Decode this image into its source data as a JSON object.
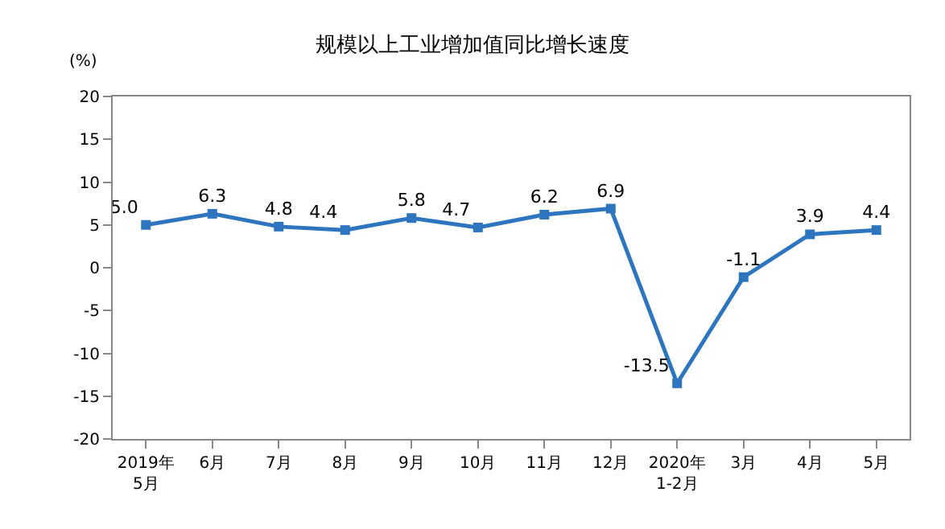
{
  "chart_data": {
    "type": "line",
    "title": "规模以上工业增加值同比增长速度",
    "ylabel": "(%)",
    "categories": [
      "2019年\n5月",
      "6月",
      "7月",
      "8月",
      "9月",
      "10月",
      "11月",
      "12月",
      "2020年\n1-2月",
      "3月",
      "4月",
      "5月"
    ],
    "series": [
      {
        "color": "#2e75c0",
        "values": [
          5.0,
          6.3,
          4.8,
          4.4,
          5.8,
          4.7,
          6.2,
          6.9,
          -13.5,
          -1.1,
          3.9,
          4.4
        ],
        "value_labels": [
          "5.0",
          "6.3",
          "4.8",
          "4.4",
          "5.8",
          "4.7",
          "6.2",
          "6.9",
          "-13.5",
          "-1.1",
          "3.9",
          "4.4"
        ]
      }
    ],
    "ylim": [
      -20,
      20
    ],
    "yticks": [
      -20,
      -15,
      -10,
      -5,
      0,
      5,
      10,
      15,
      20
    ],
    "marker": "square",
    "line_style": "solid"
  }
}
